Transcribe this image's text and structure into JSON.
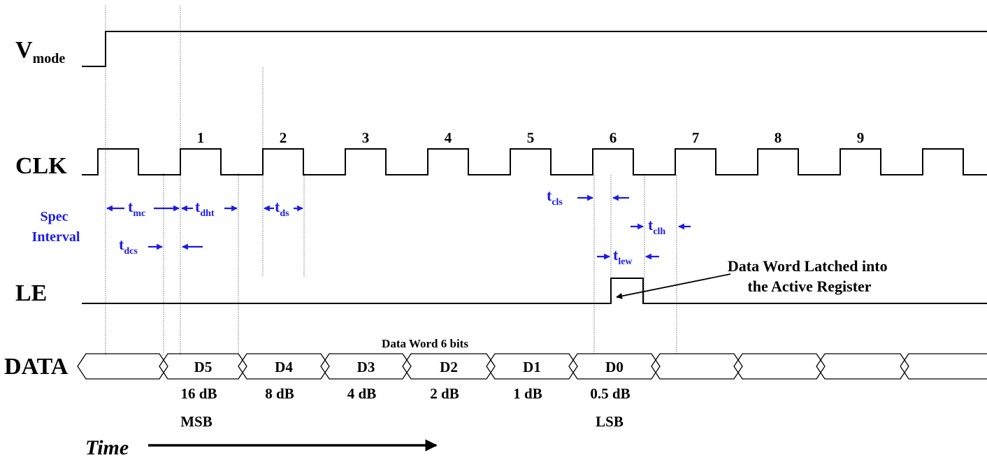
{
  "signals": {
    "vmode": {
      "main": "V",
      "sub": "mode"
    },
    "clk": "CLK",
    "le": "LE",
    "data": "DATA"
  },
  "spec_interval": [
    "Spec",
    "Interval"
  ],
  "clock_numbers": [
    "1",
    "2",
    "3",
    "4",
    "5",
    "6",
    "7",
    "8",
    "9"
  ],
  "timing": {
    "tmc": {
      "main": "t",
      "sub": "mc"
    },
    "tdht": {
      "main": "t",
      "sub": "dht"
    },
    "tds": {
      "main": "t",
      "sub": "ds"
    },
    "tdcs": {
      "main": "t",
      "sub": "dcs"
    },
    "tcls": {
      "main": "t",
      "sub": "cls"
    },
    "tclh": {
      "main": "t",
      "sub": "clh"
    },
    "tlew": {
      "main": "t",
      "sub": "lew"
    }
  },
  "data_word_label": "Data Word 6 bits",
  "data_bits": [
    {
      "name": "D5",
      "weight": "16 dB"
    },
    {
      "name": "D4",
      "weight": "8 dB"
    },
    {
      "name": "D3",
      "weight": "4 dB"
    },
    {
      "name": "D2",
      "weight": "2 dB"
    },
    {
      "name": "D1",
      "weight": "1 dB"
    },
    {
      "name": "D0",
      "weight": "0.5 dB"
    }
  ],
  "msb_label": "MSB",
  "lsb_label": "LSB",
  "latch_annotation": [
    "Data Word Latched into",
    "the Active Register"
  ],
  "time_label": "Time",
  "colors": {
    "waveform": "#000000",
    "spec": "#1a1aee"
  }
}
